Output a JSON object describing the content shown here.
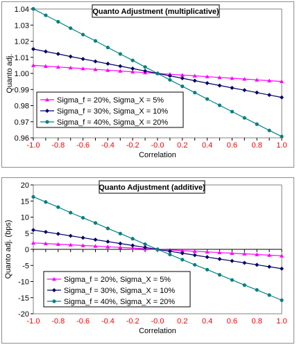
{
  "chart_data": [
    {
      "type": "line",
      "title": "Quanto Adjustment (multiplicative)",
      "xlabel": "Correlation",
      "ylabel": "Quanto adj.",
      "xlim": [
        -1.0,
        1.0
      ],
      "ylim": [
        0.96,
        1.04
      ],
      "x": [
        -1.0,
        -0.9,
        -0.8,
        -0.7,
        -0.6,
        -0.5,
        -0.4,
        -0.3,
        -0.2,
        -0.1,
        0.0,
        0.1,
        0.2,
        0.3,
        0.4,
        0.5,
        0.6,
        0.7,
        0.8,
        0.9,
        1.0
      ],
      "xticks": [
        "-1.0",
        "-0.8",
        "-0.6",
        "-0.4",
        "-0.2",
        "-0.0",
        "0.2",
        "0.4",
        "0.6",
        "0.8",
        "1.0"
      ],
      "xtick_values": [
        -1.0,
        -0.8,
        -0.6,
        -0.4,
        -0.2,
        0.0,
        0.2,
        0.4,
        0.6,
        0.8,
        1.0
      ],
      "yticks": [
        "0.96",
        "0.97",
        "0.98",
        "0.99",
        "1.00",
        "1.01",
        "1.02",
        "1.03",
        "1.04"
      ],
      "ytick_values": [
        0.96,
        0.97,
        0.98,
        0.99,
        1.0,
        1.01,
        1.02,
        1.03,
        1.04
      ],
      "grid": false,
      "legend_position": "lower-left",
      "xtick_color": "#ff0000",
      "series": [
        {
          "name": "Sigma_f = 20%, Sigma_X = 5%",
          "color": "#ff00ff",
          "marker": "triangle",
          "values": [
            1.005,
            1.0045,
            1.004,
            1.0035,
            1.003,
            1.0025,
            1.002,
            1.0015,
            1.001,
            1.0005,
            1.0,
            0.9995,
            0.999,
            0.9985,
            0.998,
            0.9975,
            0.997,
            0.9965,
            0.996,
            0.9955,
            0.995
          ]
        },
        {
          "name": "Sigma_f = 30%, Sigma_X = 10%",
          "color": "#000066",
          "marker": "diamond",
          "values": [
            1.0151,
            1.0136,
            1.0121,
            1.0105,
            1.009,
            1.0075,
            1.006,
            1.0045,
            1.003,
            1.0015,
            1.0,
            0.9985,
            0.997,
            0.9955,
            0.994,
            0.9925,
            0.991,
            0.9896,
            0.9881,
            0.9866,
            0.9851
          ]
        },
        {
          "name": "Sigma_f = 40%, Sigma_X = 20%",
          "color": "#008080",
          "marker": "circle",
          "values": [
            1.0401,
            1.0361,
            1.0321,
            1.0281,
            1.0241,
            1.0202,
            1.0161,
            1.0121,
            1.0081,
            1.004,
            1.0,
            0.996,
            0.992,
            0.9881,
            0.9841,
            0.9802,
            0.9763,
            0.9724,
            0.9685,
            0.9646,
            0.9608
          ]
        }
      ]
    },
    {
      "type": "line",
      "title": "Quanto Adjustment (additive)",
      "xlabel": "Correlation",
      "ylabel": "Quanto adj. (bps)",
      "xlim": [
        -1.0,
        1.0
      ],
      "ylim": [
        -20,
        20
      ],
      "x": [
        -1.0,
        -0.9,
        -0.8,
        -0.7,
        -0.6,
        -0.5,
        -0.4,
        -0.3,
        -0.2,
        -0.1,
        0.0,
        0.1,
        0.2,
        0.3,
        0.4,
        0.5,
        0.6,
        0.7,
        0.8,
        0.9,
        1.0
      ],
      "xticks": [
        "-1.0",
        "-0.8",
        "-0.6",
        "-0.4",
        "-0.2",
        "-0.0",
        "0.2",
        "0.4",
        "0.6",
        "0.8",
        "1.0"
      ],
      "xtick_values": [
        -1.0,
        -0.8,
        -0.6,
        -0.4,
        -0.2,
        0.0,
        0.2,
        0.4,
        0.6,
        0.8,
        1.0
      ],
      "yticks": [
        "-20",
        "-15",
        "-10",
        "-5",
        "0",
        "5",
        "10",
        "15",
        "20"
      ],
      "ytick_values": [
        -20,
        -15,
        -10,
        -5,
        0,
        5,
        10,
        15,
        20
      ],
      "grid": false,
      "legend_position": "lower-left",
      "xtick_color": "#ff0000",
      "series": [
        {
          "name": "Sigma_f = 20%, Sigma_X = 5%",
          "color": "#ff00ff",
          "marker": "triangle",
          "values": [
            2.0,
            1.8,
            1.6,
            1.4,
            1.2,
            1.0,
            0.8,
            0.6,
            0.4,
            0.2,
            0.0,
            -0.2,
            -0.4,
            -0.6,
            -0.8,
            -1.0,
            -1.2,
            -1.4,
            -1.6,
            -1.8,
            -2.0
          ]
        },
        {
          "name": "Sigma_f = 30%, Sigma_X = 10%",
          "color": "#000066",
          "marker": "diamond",
          "values": [
            6.0,
            5.4,
            4.8,
            4.2,
            3.6,
            3.0,
            2.4,
            1.8,
            1.2,
            0.6,
            0.0,
            -0.6,
            -1.2,
            -1.8,
            -2.4,
            -3.0,
            -3.6,
            -4.2,
            -4.8,
            -5.4,
            -6.0
          ]
        },
        {
          "name": "Sigma_f = 40%, Sigma_X = 20%",
          "color": "#008080",
          "marker": "circle",
          "values": [
            16.3,
            14.7,
            13.1,
            11.4,
            9.8,
            8.2,
            6.5,
            4.9,
            3.3,
            1.6,
            0.0,
            -1.6,
            -3.2,
            -4.8,
            -6.3,
            -7.9,
            -9.5,
            -11.1,
            -12.6,
            -14.2,
            -15.8
          ]
        }
      ]
    }
  ]
}
